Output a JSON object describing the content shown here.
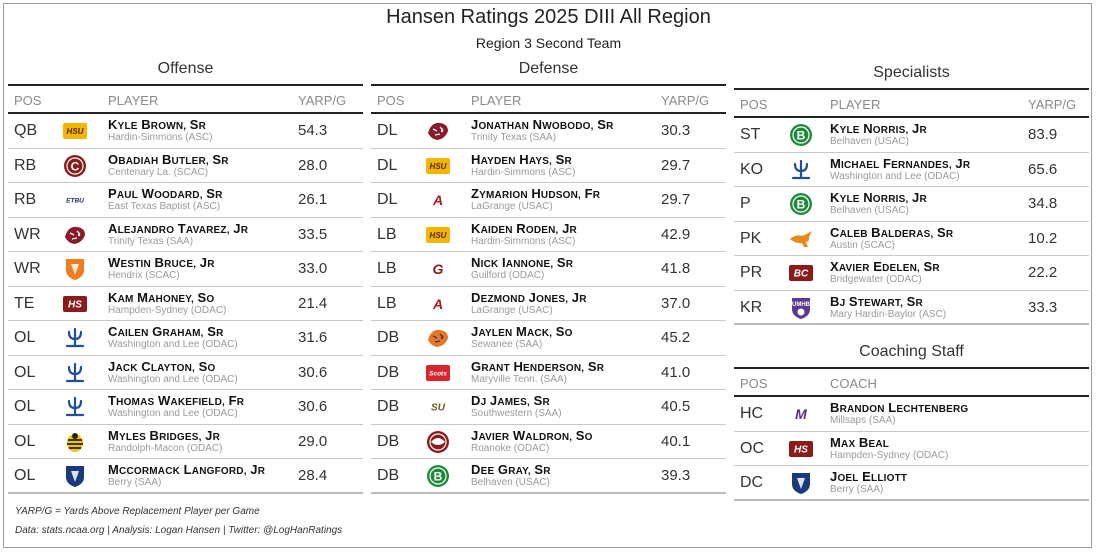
{
  "title": "Hansen Ratings 2025 DIII All Region",
  "subtitle": "Region 3 Second Team",
  "headers": {
    "pos": "POS",
    "player": "PLAYER",
    "metric": "YARP/G",
    "coach": "COACH"
  },
  "offense": {
    "title": "Offense",
    "rows": [
      {
        "pos": "QB",
        "name": "Kyle Brown, Sr",
        "school": "Hardin-Simmons (ASC)",
        "val": "54.3",
        "logo": {
          "type": "text",
          "text": "HSU",
          "bg": "#f2b600",
          "fg": "#5a1f00",
          "icon": "hsu-logo-icon"
        }
      },
      {
        "pos": "RB",
        "name": "Obadiah Butler, Sr",
        "school": "Centenary La. (SCAC)",
        "val": "28.0",
        "logo": {
          "type": "circle",
          "text": "C",
          "bg": "#8b1a1a",
          "fg": "#ffffff",
          "icon": "centenary-logo-icon"
        }
      },
      {
        "pos": "RB",
        "name": "Paul Woodard, Sr",
        "school": "East Texas Baptist (ASC)",
        "val": "26.1",
        "logo": {
          "type": "text",
          "text": "ETBU",
          "bg": "#ffffff",
          "fg": "#1a2a6c",
          "icon": "etbu-logo-icon"
        }
      },
      {
        "pos": "WR",
        "name": "Alejandro Tavarez, Jr",
        "school": "Trinity Texas (SAA)",
        "val": "33.5",
        "logo": {
          "type": "tiger",
          "bg": "#8b1a2a",
          "fg": "#ffffff",
          "icon": "trinity-tiger-icon"
        }
      },
      {
        "pos": "WR",
        "name": "Westin Bruce, Jr",
        "school": "Hendrix (SCAC)",
        "val": "33.0",
        "logo": {
          "type": "shield",
          "text": "",
          "bg": "#f07c1e",
          "fg": "#ffffff",
          "icon": "hendrix-warrior-icon"
        }
      },
      {
        "pos": "TE",
        "name": "Kam Mahoney, So",
        "school": "Hampden-Sydney (ODAC)",
        "val": "21.4",
        "logo": {
          "type": "text",
          "text": "HS",
          "bg": "#8b1a1a",
          "fg": "#ffffff",
          "icon": "hampden-sydney-logo-icon"
        }
      },
      {
        "pos": "OL",
        "name": "Cailen Graham, Sr",
        "school": "Washington and Lee (ODAC)",
        "val": "31.6",
        "logo": {
          "type": "trident",
          "bg": "#ffffff",
          "fg": "#1f4e9c",
          "icon": "washington-lee-logo-icon"
        }
      },
      {
        "pos": "OL",
        "name": "Jack Clayton, So",
        "school": "Washington and Lee (ODAC)",
        "val": "30.6",
        "logo": {
          "type": "trident",
          "bg": "#ffffff",
          "fg": "#1f4e9c",
          "icon": "washington-lee-logo-icon"
        }
      },
      {
        "pos": "OL",
        "name": "Thomas Wakefield, Fr",
        "school": "Washington and Lee (ODAC)",
        "val": "30.6",
        "logo": {
          "type": "trident",
          "bg": "#ffffff",
          "fg": "#1f4e9c",
          "icon": "washington-lee-logo-icon"
        }
      },
      {
        "pos": "OL",
        "name": "Myles Bridges, Jr",
        "school": "Randolph-Macon (ODAC)",
        "val": "29.0",
        "logo": {
          "type": "bee",
          "bg": "#f2c500",
          "fg": "#222222",
          "icon": "randolph-macon-jacket-icon"
        }
      },
      {
        "pos": "OL",
        "name": "McCormack Langford, Jr",
        "school": "Berry (SAA)",
        "val": "28.4",
        "logo": {
          "type": "shield",
          "text": "",
          "bg": "#1a3a7c",
          "fg": "#ffffff",
          "icon": "berry-logo-icon"
        }
      }
    ]
  },
  "defense": {
    "title": "Defense",
    "rows": [
      {
        "pos": "DL",
        "name": "Jonathan Nwobodo, Sr",
        "school": "Trinity Texas (SAA)",
        "val": "30.3",
        "logo": {
          "type": "tiger",
          "bg": "#8b1a2a",
          "fg": "#ffffff",
          "icon": "trinity-tiger-icon"
        }
      },
      {
        "pos": "DL",
        "name": "Hayden Hays, Sr",
        "school": "Hardin-Simmons (ASC)",
        "val": "29.7",
        "logo": {
          "type": "text",
          "text": "HSU",
          "bg": "#f2b600",
          "fg": "#5a1f00",
          "icon": "hsu-logo-icon"
        }
      },
      {
        "pos": "DL",
        "name": "Zymarion Hudson, Fr",
        "school": "LaGrange (USAC)",
        "val": "29.7",
        "logo": {
          "type": "text",
          "text": "A",
          "bg": "#ffffff",
          "fg": "#b01c2c",
          "icon": "lagrange-logo-icon"
        }
      },
      {
        "pos": "LB",
        "name": "Kaiden Roden, Jr",
        "school": "Hardin-Simmons (ASC)",
        "val": "42.9",
        "logo": {
          "type": "text",
          "text": "HSU",
          "bg": "#f2b600",
          "fg": "#5a1f00",
          "icon": "hsu-logo-icon"
        }
      },
      {
        "pos": "LB",
        "name": "Nick Iannone, Sr",
        "school": "Guilford (ODAC)",
        "val": "41.8",
        "logo": {
          "type": "text",
          "text": "G",
          "bg": "#ffffff",
          "fg": "#8b1a1a",
          "icon": "guilford-logo-icon"
        }
      },
      {
        "pos": "LB",
        "name": "Dezmond Jones, Jr",
        "school": "LaGrange (USAC)",
        "val": "37.0",
        "logo": {
          "type": "text",
          "text": "A",
          "bg": "#ffffff",
          "fg": "#b01c2c",
          "icon": "lagrange-logo-icon"
        }
      },
      {
        "pos": "DB",
        "name": "Jaylen Mack, So",
        "school": "Sewanee (SAA)",
        "val": "45.2",
        "logo": {
          "type": "tiger",
          "bg": "#e87722",
          "fg": "#4b2a7a",
          "icon": "sewanee-tiger-icon"
        }
      },
      {
        "pos": "DB",
        "name": "Grant Henderson, Sr",
        "school": "Maryville Tenn. (SAA)",
        "val": "41.0",
        "logo": {
          "type": "text",
          "text": "Scots",
          "bg": "#d8262e",
          "fg": "#ffffff",
          "icon": "maryville-scots-icon"
        }
      },
      {
        "pos": "DB",
        "name": "DJ James, Sr",
        "school": "Southwestern (SAA)",
        "val": "40.5",
        "logo": {
          "type": "text",
          "text": "SU",
          "bg": "#ffffff",
          "fg": "#6b5a1e",
          "icon": "southwestern-logo-icon"
        }
      },
      {
        "pos": "DB",
        "name": "Javier Waldron, So",
        "school": "Roanoke (ODAC)",
        "val": "40.1",
        "logo": {
          "type": "circle",
          "text": "",
          "bg": "#8b1a1a",
          "fg": "#ffffff",
          "icon": "roanoke-logo-icon"
        }
      },
      {
        "pos": "DB",
        "name": "Dee Gray, Sr",
        "school": "Belhaven (USAC)",
        "val": "39.3",
        "logo": {
          "type": "circle",
          "text": "B",
          "bg": "#1f8a3c",
          "fg": "#ffffff",
          "icon": "belhaven-logo-icon"
        }
      }
    ]
  },
  "specialists": {
    "title": "Specialists",
    "rows": [
      {
        "pos": "ST",
        "name": "Kyle Norris, Jr",
        "school": "Belhaven (USAC)",
        "val": "83.9",
        "logo": {
          "type": "circle",
          "text": "B",
          "bg": "#1f8a3c",
          "fg": "#ffffff",
          "icon": "belhaven-logo-icon"
        }
      },
      {
        "pos": "KO",
        "name": "Michael Fernandes, Jr",
        "school": "Washington and Lee (ODAC)",
        "val": "65.6",
        "logo": {
          "type": "trident",
          "bg": "#ffffff",
          "fg": "#1f4e9c",
          "icon": "washington-lee-logo-icon"
        }
      },
      {
        "pos": "P",
        "name": "Kyle Norris, Jr",
        "school": "Belhaven (USAC)",
        "val": "34.8",
        "logo": {
          "type": "circle",
          "text": "B",
          "bg": "#1f8a3c",
          "fg": "#ffffff",
          "icon": "belhaven-logo-icon"
        }
      },
      {
        "pos": "PK",
        "name": "Caleb Balderas, Sr",
        "school": "Austin (SCAC)",
        "val": "10.2",
        "logo": {
          "type": "kangaroo",
          "bg": "#ffffff",
          "fg": "#e88a1a",
          "icon": "austin-kangaroo-icon"
        }
      },
      {
        "pos": "PR",
        "name": "Xavier Edelen, Sr",
        "school": "Bridgewater (ODAC)",
        "val": "22.2",
        "logo": {
          "type": "text",
          "text": "BC",
          "bg": "#8b1a1a",
          "fg": "#ffffff",
          "icon": "bridgewater-logo-icon"
        }
      },
      {
        "pos": "KR",
        "name": "BJ Stewart, Sr",
        "school": "Mary Hardin-Baylor (ASC)",
        "val": "33.3",
        "logo": {
          "type": "shield",
          "text": "UMHB",
          "bg": "#5a3a8c",
          "fg": "#ffffff",
          "icon": "umhb-logo-icon"
        }
      }
    ]
  },
  "coaching": {
    "title": "Coaching Staff",
    "rows": [
      {
        "pos": "HC",
        "name": "Brandon Lechtenberg",
        "school": "Millsaps (SAA)",
        "logo": {
          "type": "text",
          "text": "M",
          "bg": "#ffffff",
          "fg": "#5a2a8c",
          "icon": "millsaps-logo-icon"
        }
      },
      {
        "pos": "OC",
        "name": "Max Beal",
        "school": "Hampden-Sydney (ODAC)",
        "logo": {
          "type": "text",
          "text": "HS",
          "bg": "#8b1a1a",
          "fg": "#ffffff",
          "icon": "hampden-sydney-logo-icon"
        }
      },
      {
        "pos": "DC",
        "name": "Joel Elliott",
        "school": "Berry (SAA)",
        "logo": {
          "type": "shield",
          "text": "",
          "bg": "#1a3a7c",
          "fg": "#ffffff",
          "icon": "berry-logo-icon"
        }
      }
    ]
  },
  "footer": {
    "note": "YARP/G = Yards Above Replacement Player per Game",
    "credits": "Data: stats.ncaa.org | Analysis: Logan Hansen | Twitter: @LogHanRatings"
  }
}
